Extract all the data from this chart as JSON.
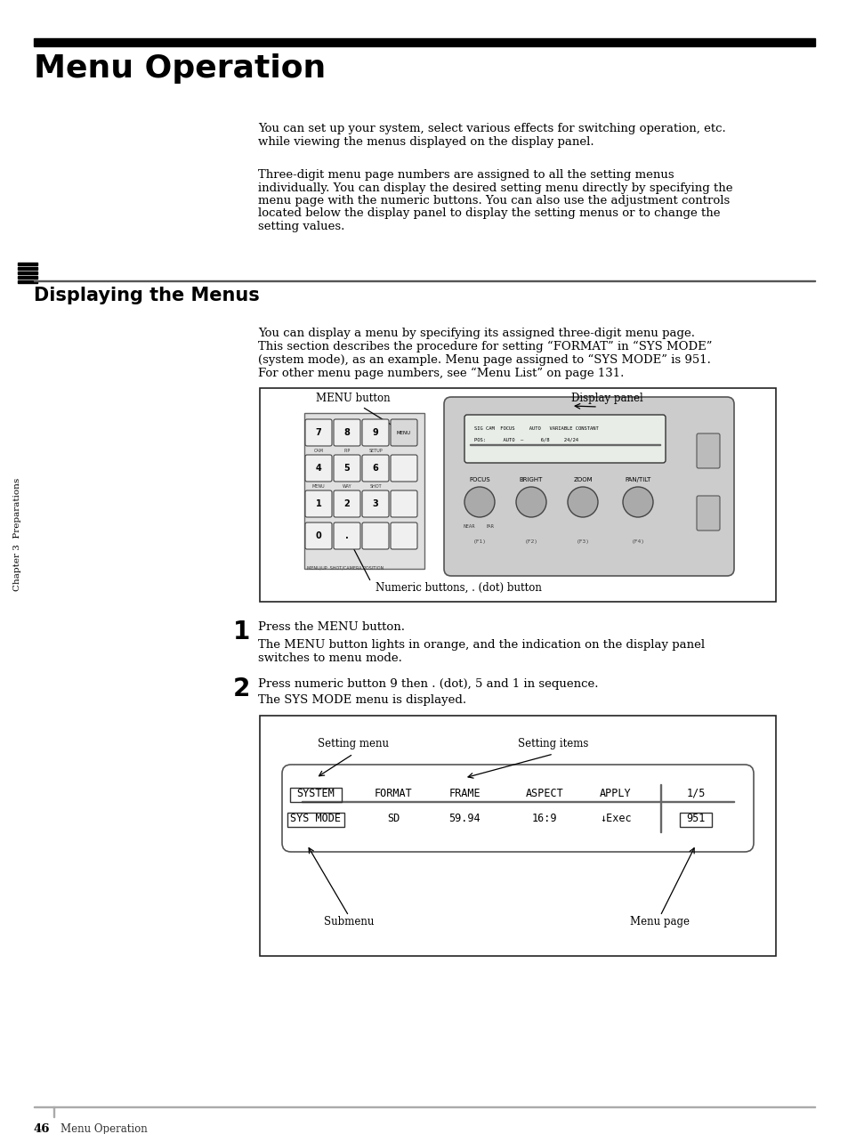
{
  "page_bg": "#ffffff",
  "title": "Menu Operation",
  "title_fontsize": 26,
  "section_title": "Displaying the Menus",
  "section_title_fontsize": 15,
  "body_fontsize": 9.5,
  "small_fontsize": 7.5,
  "para1_lines": [
    "You can set up your system, select various effects for switching operation, etc.",
    "while viewing the menus displayed on the display panel."
  ],
  "para2_lines": [
    "Three-digit menu page numbers are assigned to all the setting menus",
    "individually. You can display the desired setting menu directly by specifying the",
    "menu page with the numeric buttons. You can also use the adjustment controls",
    "located below the display panel to display the setting menus or to change the",
    "setting values."
  ],
  "section_para_lines": [
    "You can display a menu by specifying its assigned three-digit menu page.",
    "This section describes the procedure for setting “FORMAT” in “SYS MODE”",
    "(system mode), as an example. Menu page assigned to “SYS MODE” is 951.",
    "For other menu page numbers, see “Menu List” on page 131."
  ],
  "step1_num": "1",
  "step1_text": "Press the MENU button.",
  "step1_desc": [
    "The MENU button lights in orange, and the indication on the display panel",
    "switches to menu mode."
  ],
  "step2_num": "2",
  "step2_text": "Press numeric button 9 then . (dot), 5 and 1 in sequence.",
  "step2_desc": "The SYS MODE menu is displayed.",
  "sidebar_text": "Chapter 3  Preparations",
  "page_number": "46",
  "footer_text": "Menu Operation",
  "menu_button_label": "MENU button",
  "display_panel_label": "Display panel",
  "numeric_buttons_label": "Numeric buttons, . (dot) button",
  "setting_menu_label": "Setting menu",
  "setting_items_label": "Setting items",
  "submenu_label": "Submenu",
  "menu_page_label": "Menu page"
}
